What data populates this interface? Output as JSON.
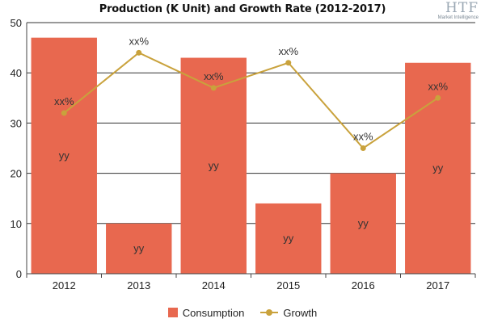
{
  "chart_data": {
    "type": "bar",
    "title": "Production (K Unit) and Growth Rate (2012-2017)",
    "categories": [
      "2012",
      "2013",
      "2014",
      "2015",
      "2016",
      "2017"
    ],
    "ylim": [
      0,
      50
    ],
    "yticks": [
      0,
      10,
      20,
      30,
      40,
      50
    ],
    "grid": true,
    "legend_position": "bottom",
    "series": [
      {
        "name": "Consumption",
        "kind": "bar",
        "color": "#e8684f",
        "values": [
          47,
          10,
          43,
          14,
          20,
          42
        ],
        "labels": [
          "yy",
          "yy",
          "yy",
          "yy",
          "yy",
          "yy"
        ]
      },
      {
        "name": "Growth",
        "kind": "line",
        "color": "#c9a23c",
        "values": [
          32,
          44,
          37,
          42,
          25,
          35
        ],
        "labels": [
          "xx%",
          "xx%",
          "xx%",
          "xx%",
          "xx%",
          "xx%"
        ]
      }
    ]
  },
  "logo": {
    "mark": "HTF",
    "sub": "Market Intelligence"
  }
}
